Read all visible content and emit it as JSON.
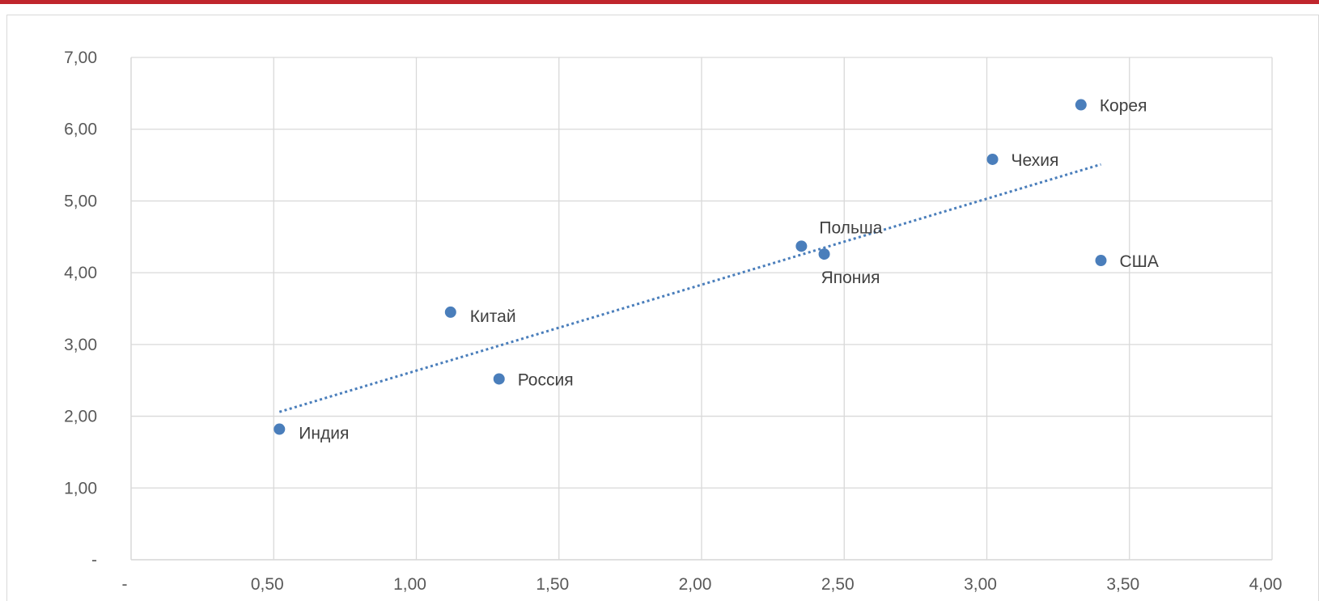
{
  "chart_data": {
    "type": "scatter",
    "title": "",
    "xlabel": "",
    "ylabel": "",
    "xlim": [
      0,
      4
    ],
    "ylim": [
      0,
      7
    ],
    "grid": true,
    "legend": "none",
    "x_ticks": [
      {
        "value": 0,
        "label": "-"
      },
      {
        "value": 0.5,
        "label": "0,50"
      },
      {
        "value": 1,
        "label": "1,00"
      },
      {
        "value": 1.5,
        "label": "1,50"
      },
      {
        "value": 2,
        "label": "2,00"
      },
      {
        "value": 2.5,
        "label": "2,50"
      },
      {
        "value": 3,
        "label": "3,00"
      },
      {
        "value": 3.5,
        "label": "3,50"
      },
      {
        "value": 4,
        "label": "4,00"
      }
    ],
    "y_ticks": [
      {
        "value": 0,
        "label": "-"
      },
      {
        "value": 1,
        "label": "1,00"
      },
      {
        "value": 2,
        "label": "2,00"
      },
      {
        "value": 3,
        "label": "3,00"
      },
      {
        "value": 4,
        "label": "4,00"
      },
      {
        "value": 5,
        "label": "5,00"
      },
      {
        "value": 6,
        "label": "6,00"
      },
      {
        "value": 7,
        "label": "7,00"
      }
    ],
    "points": [
      {
        "label": "Индия",
        "x": 0.52,
        "y": 1.82,
        "label_pos": "right-below"
      },
      {
        "label": "Китай",
        "x": 1.12,
        "y": 3.45,
        "label_pos": "right-below"
      },
      {
        "label": "Россия",
        "x": 1.29,
        "y": 2.52,
        "label_pos": "right"
      },
      {
        "label": "Польша",
        "x": 2.35,
        "y": 4.37,
        "label_pos": "above-right"
      },
      {
        "label": "Япония",
        "x": 2.43,
        "y": 4.26,
        "label_pos": "below"
      },
      {
        "label": "Чехия",
        "x": 3.02,
        "y": 5.58,
        "label_pos": "right"
      },
      {
        "label": "Корея",
        "x": 3.33,
        "y": 6.34,
        "label_pos": "right"
      },
      {
        "label": "США",
        "x": 3.4,
        "y": 4.17,
        "label_pos": "right"
      }
    ],
    "trendline": {
      "type": "linear",
      "x_start": 0.52,
      "y_start": 2.06,
      "x_end": 3.4,
      "y_end": 5.51,
      "style": "dotted"
    },
    "colors": {
      "point": "#4a7ebb",
      "trend": "#4a7ebb",
      "grid": "#d9d9d9",
      "accent": "#c0262d"
    }
  }
}
